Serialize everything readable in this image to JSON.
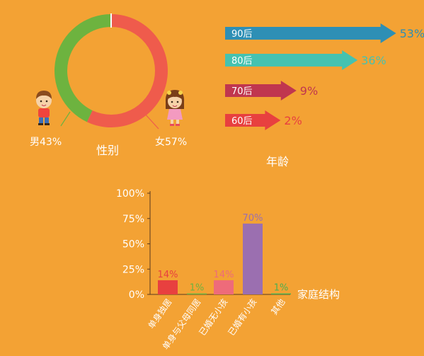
{
  "colors": {
    "background": "#F3A234",
    "male": "#6DB33F",
    "female": "#EF5B4C",
    "age_90": "#2E8FB5",
    "age_80": "#45C2B0",
    "age_70": "#C0364F",
    "age_60": "#E8403F",
    "text_light": "#FFFFFF",
    "text_dark": "#5A3A1E"
  },
  "chart_data": [
    {
      "type": "pie",
      "title": "性别",
      "slices": [
        {
          "name": "男",
          "label": "男43%",
          "value": 43,
          "color": "#6DB33F",
          "icon": "boy-icon"
        },
        {
          "name": "女",
          "label": "女57%",
          "value": 57,
          "color": "#EF5B4C",
          "icon": "girl-icon"
        }
      ]
    },
    {
      "type": "bar",
      "title": "年龄",
      "orientation": "horizontal",
      "categories": [
        "90后",
        "80后",
        "70后",
        "60后"
      ],
      "values": [
        53,
        36,
        9,
        2
      ],
      "value_labels": [
        "53%",
        "36%",
        "9%",
        "2%"
      ],
      "colors": [
        "#2E8FB5",
        "#45C2B0",
        "#C0364F",
        "#E8403F"
      ]
    },
    {
      "type": "bar",
      "categories": [
        "单身独居",
        "单身与父母同居",
        "已婚无小孩",
        "已婚有小孩",
        "其他"
      ],
      "values": [
        14,
        1,
        14,
        70,
        1
      ],
      "value_labels": [
        "14%",
        "1%",
        "14%",
        "70%",
        "1%"
      ],
      "colors": [
        "#E8403F",
        "#6DB33F",
        "#EE6B7A",
        "#9B6FB0",
        "#4CAF50"
      ],
      "xlabel": "家庭结构",
      "ylim": [
        0,
        100
      ],
      "yticks": [
        "0%",
        "25%",
        "50%",
        "75%",
        "100%"
      ]
    }
  ]
}
